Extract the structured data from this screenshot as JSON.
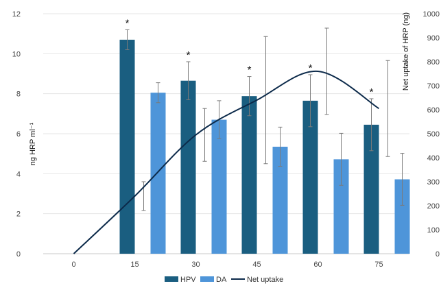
{
  "chart_data": {
    "type": "bar",
    "categories": [
      "0",
      "15",
      "30",
      "45",
      "60",
      "75"
    ],
    "xlabel": "",
    "ylabel": "ng HRP ml⁻¹",
    "y2label": "Net uptake of HRP (ng)",
    "ylim": [
      0,
      12
    ],
    "y_ticks": [
      "0",
      "2",
      "4",
      "6",
      "8",
      "10",
      "12"
    ],
    "y2lim": [
      0,
      1000
    ],
    "y2_ticks": [
      "0",
      "100",
      "200",
      "300",
      "400",
      "500",
      "600",
      "700",
      "800",
      "900",
      "1000"
    ],
    "grid": "horizontal",
    "legend_position": "bottom",
    "series": [
      {
        "name": "HPV",
        "kind": "bar",
        "color": "#1a5e80",
        "values": [
          null,
          10.7,
          8.65,
          7.88,
          7.65,
          6.45
        ],
        "errors": [
          null,
          0.5,
          0.95,
          0.98,
          1.3,
          1.3
        ],
        "significance": [
          "",
          "*",
          "*",
          "*",
          "*",
          "*"
        ]
      },
      {
        "name": "DA",
        "kind": "bar",
        "color": "#4e95d9",
        "values": [
          null,
          8.05,
          6.7,
          5.35,
          4.72,
          3.72
        ],
        "errors": [
          null,
          0.5,
          0.95,
          0.98,
          1.3,
          1.3
        ]
      },
      {
        "name": "Net uptake",
        "kind": "line",
        "axis": "right",
        "color": "#0c2a4a",
        "x": [
          0,
          15,
          30,
          45,
          60,
          75
        ],
        "values": [
          0,
          240,
          495,
          640,
          760,
          605
        ],
        "errors": [
          null,
          60,
          110,
          265,
          180,
          200
        ]
      }
    ]
  }
}
